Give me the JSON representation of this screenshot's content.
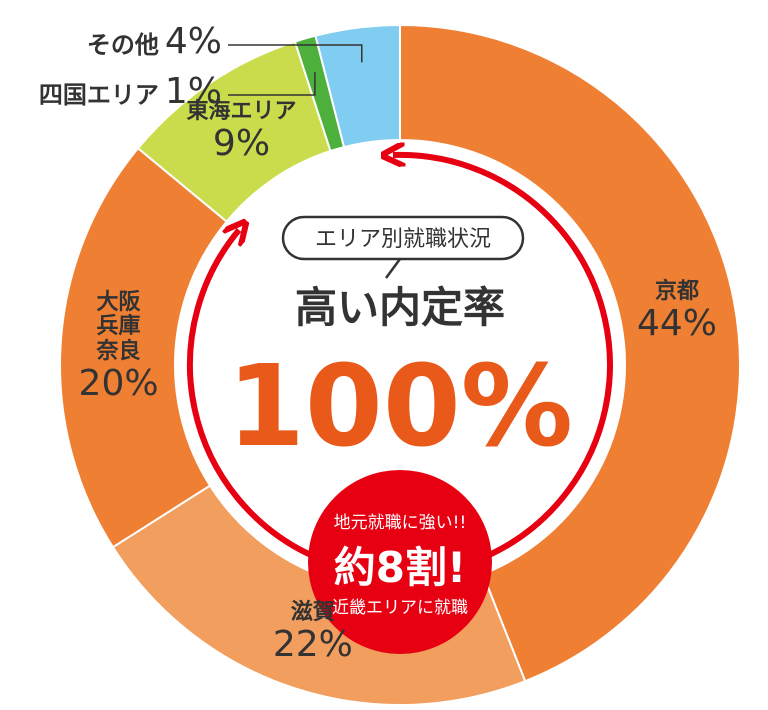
{
  "chart_data": {
    "type": "donut",
    "categories": [
      "京都",
      "滋賀",
      "大阪\n兵庫\n奈良",
      "東海エリア",
      "四国エリア",
      "その他"
    ],
    "values": [
      44,
      22,
      20,
      9,
      1,
      4
    ],
    "value_labels": [
      "44%",
      "22%",
      "20%",
      "9%",
      "1%",
      "4%"
    ],
    "colors": [
      "#ee7f33",
      "#f29e5e",
      "#ee7f33",
      "#cadc4c",
      "#4db03c",
      "#80cdf1"
    ],
    "annotations": {
      "badge": "エリア別就職状況",
      "headline": "高い内定率",
      "rate": "100%",
      "callout_top": "地元就職に強い!!",
      "callout_main": "約8割!",
      "callout_bottom": "近畿エリアに就職"
    }
  }
}
